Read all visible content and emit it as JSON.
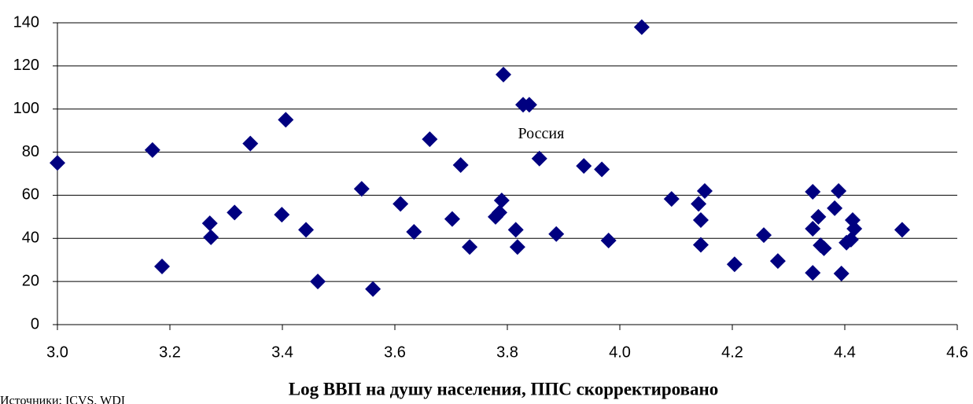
{
  "chart_data": {
    "type": "scatter",
    "x_label": "Log ВВП на душу населения, ППС скорректировано",
    "source": "Источники: ICVS, WDI",
    "color": "#000080",
    "grid": true,
    "xlim": [
      3.0,
      4.6
    ],
    "xticks": [
      {
        "value": 3,
        "label": "3.0"
      },
      3.2,
      3.4,
      3.6,
      3.8,
      {
        "value": 4,
        "label": "4.0"
      },
      4.2,
      4.4,
      4.6
    ],
    "ylim": [
      0,
      140
    ],
    "yticks": [
      0,
      20,
      40,
      60,
      80,
      100,
      120,
      140
    ],
    "annotations": [
      {
        "text": "Россия",
        "x": 3.86,
        "y": 88
      }
    ],
    "x": [
      3.0,
      3.169,
      3.186,
      3.271,
      3.273,
      3.315,
      3.343,
      3.399,
      3.406,
      3.442,
      3.463,
      3.541,
      3.561,
      3.61,
      3.634,
      3.662,
      3.702,
      3.717,
      3.733,
      3.779,
      3.786,
      3.79,
      3.793,
      3.815,
      3.818,
      3.828,
      3.839,
      3.857,
      3.887,
      3.936,
      3.968,
      3.98,
      4.039,
      4.092,
      4.14,
      4.144,
      4.144,
      4.151,
      4.204,
      4.256,
      4.281,
      4.343,
      4.343,
      4.343,
      4.353,
      4.357,
      4.363,
      4.382,
      4.389,
      4.394,
      4.403,
      4.411,
      4.414,
      4.417,
      4.502
    ],
    "y": [
      75,
      81,
      27,
      47,
      40.5,
      52,
      84,
      51,
      95,
      44,
      20,
      63,
      16.5,
      56,
      43,
      86,
      49,
      74,
      36,
      50,
      52,
      57.6,
      116,
      44,
      36,
      102,
      102,
      77,
      42,
      73.6,
      72,
      39,
      138,
      58.3,
      56,
      48.5,
      37,
      62,
      28,
      41.5,
      29.5,
      61.6,
      44.5,
      24,
      50,
      36.8,
      35.4,
      54,
      62,
      23.7,
      38,
      39.4,
      48.5,
      44.5,
      44
    ]
  }
}
